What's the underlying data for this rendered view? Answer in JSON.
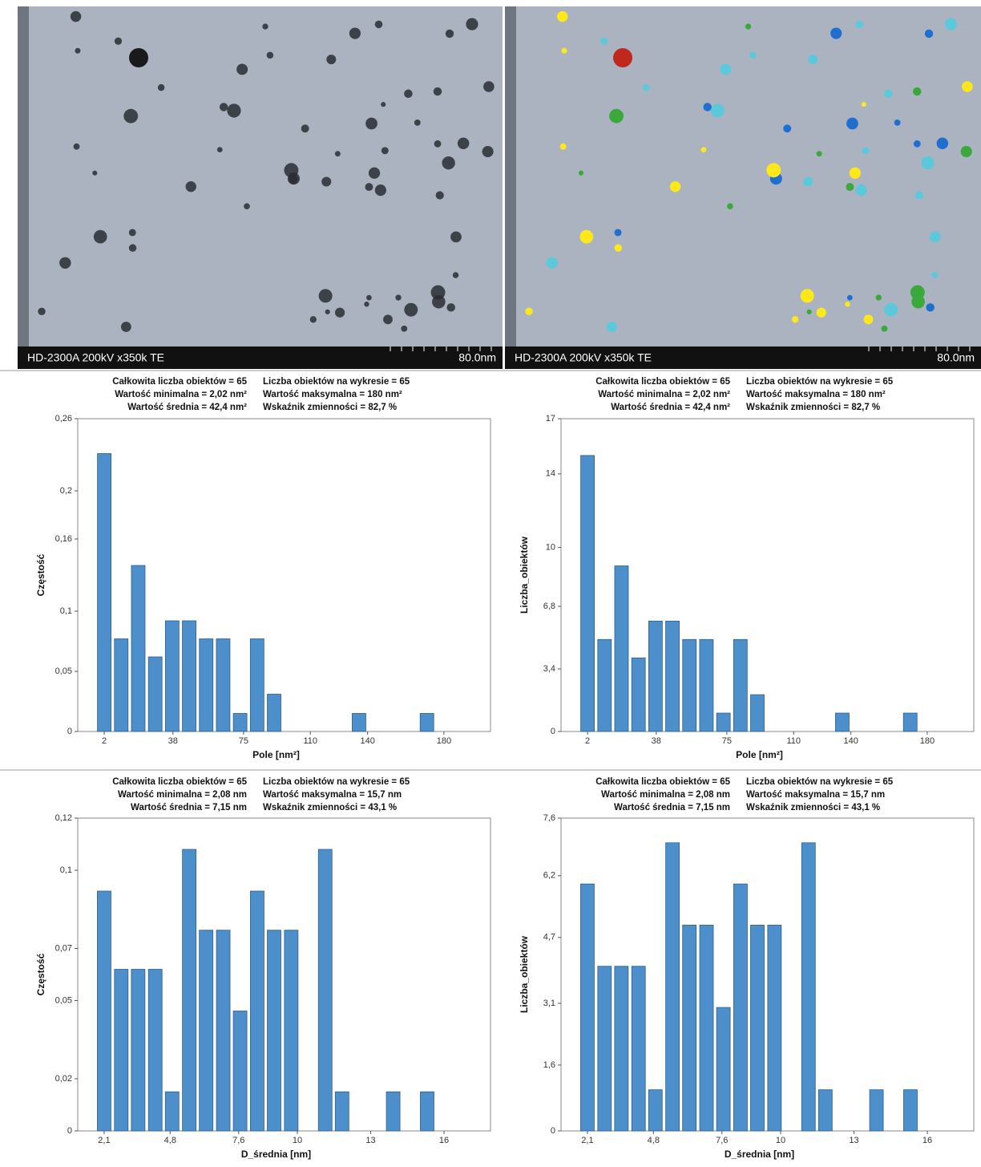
{
  "images": [
    {
      "caption": "HD-2300A  200kV  x350k  TE",
      "scale": "80.0nm"
    },
    {
      "caption": "HD-2300A  200kV  x350k  TE",
      "scale": "80.0nm"
    }
  ],
  "chart_data": [
    {
      "type": "bar",
      "color": "#4d8fcb",
      "stats": [
        "Całkowita liczba obiektów = 65",
        "Liczba obiektów na wykresie = 65",
        "Wartość minimalna = 2,02 nm²",
        "Wartość maksymalna = 180 nm²",
        "Wartość średnia = 42,4 nm²",
        "Wskaźnik zmienności = 82,7 %"
      ],
      "x_label": "Pole [nm²]",
      "y_label": "Częstość",
      "x": [
        2,
        10.9,
        19.8,
        28.7,
        37.6,
        46.5,
        55.4,
        64.3,
        73.2,
        82.1,
        91,
        99.9,
        108.8,
        117.7,
        126.6,
        135.5,
        144.4,
        153.3,
        162.2,
        171.1
      ],
      "values": [
        0.231,
        0.077,
        0.138,
        0.062,
        0.092,
        0.092,
        0.077,
        0.077,
        0.015,
        0.077,
        0.031,
        0,
        0,
        0,
        0,
        0.015,
        0,
        0,
        0,
        0.015
      ],
      "xlim": [
        -11.9,
        204.4
      ],
      "xticks": [
        2,
        38,
        75,
        110,
        140,
        180
      ],
      "ylim": [
        0,
        0.26
      ],
      "yticks": [
        0,
        {
          "value": 0.05,
          "label": "0,05"
        },
        {
          "value": 0.1,
          "label": "0,1"
        },
        {
          "value": 0.16,
          "label": "0,16"
        },
        {
          "value": 0.2,
          "label": "0,2"
        },
        {
          "value": 0.26,
          "label": "0,26"
        }
      ]
    },
    {
      "type": "bar",
      "color": "#4d8fcb",
      "stats": [
        "Całkowita liczba obiektów = 65",
        "Liczba obiektów na wykresie = 65",
        "Wartość minimalna = 2,02 nm²",
        "Wartość maksymalna = 180 nm²",
        "Wartość średnia = 42,4 nm²",
        "Wskaźnik zmienności = 82,7 %"
      ],
      "x_label": "Pole [nm²]",
      "y_label": "Liczba_obiektów",
      "x": [
        2,
        10.9,
        19.8,
        28.7,
        37.6,
        46.5,
        55.4,
        64.3,
        73.2,
        82.1,
        91,
        99.9,
        108.8,
        117.7,
        126.6,
        135.5,
        144.4,
        153.3,
        162.2,
        171.1
      ],
      "values": [
        15,
        5,
        9,
        4,
        6,
        6,
        5,
        5,
        1,
        5,
        2,
        0,
        0,
        0,
        0,
        1,
        0,
        0,
        0,
        1
      ],
      "xlim": [
        -11.9,
        204.4
      ],
      "xticks": [
        2,
        38,
        75,
        110,
        140,
        180
      ],
      "ylim": [
        0,
        17
      ],
      "yticks": [
        0,
        {
          "value": 3.4,
          "label": "3,4"
        },
        {
          "value": 6.8,
          "label": "6,8"
        },
        10,
        14,
        17
      ]
    },
    {
      "type": "bar",
      "color": "#4d8fcb",
      "stats": [
        "Całkowita liczba obiektów = 65",
        "Liczba obiektów na wykresie = 65",
        "Wartość minimalna = 2,08 nm",
        "Wartość maksymalna = 15,7 nm",
        "Wartość średnia = 7,15 nm",
        "Wskaźnik zmienności = 43,1 %"
      ],
      "x_label": "D_średnia [nm]",
      "y_label": "Częstość",
      "x": [
        2.1,
        2.8,
        3.49,
        4.19,
        4.88,
        5.58,
        6.27,
        6.97,
        7.66,
        8.36,
        9.05,
        9.75,
        10.44,
        11.14,
        11.83,
        12.53,
        13.22,
        13.92,
        14.61,
        15.31
      ],
      "values": [
        0.092,
        0.062,
        0.062,
        0.062,
        0.015,
        0.108,
        0.077,
        0.077,
        0.046,
        0.092,
        0.077,
        0.077,
        0,
        0.108,
        0.015,
        0,
        0,
        0.015,
        0,
        0.015
      ],
      "xlim": [
        1.02,
        17.9
      ],
      "xticks": [
        {
          "value": 2.1,
          "label": "2,1"
        },
        {
          "value": 4.8,
          "label": "4,8"
        },
        {
          "value": 7.6,
          "label": "7,6"
        },
        10,
        13,
        16
      ],
      "ylim": [
        0,
        0.12
      ],
      "yticks": [
        0,
        {
          "value": 0.02,
          "label": "0,02"
        },
        {
          "value": 0.05,
          "label": "0,05"
        },
        {
          "value": 0.07,
          "label": "0,07"
        },
        {
          "value": 0.1,
          "label": "0,1"
        },
        {
          "value": 0.12,
          "label": "0,12"
        }
      ]
    },
    {
      "type": "bar",
      "color": "#4d8fcb",
      "stats": [
        "Całkowita liczba obiektów = 65",
        "Liczba obiektów na wykresie = 65",
        "Wartość minimalna = 2,08 nm",
        "Wartość maksymalna = 15,7 nm",
        "Wartość średnia = 7,15 nm",
        "Wskaźnik zmienności = 43,1 %"
      ],
      "x_label": "D_średnia [nm]",
      "y_label": "Liczba_obiektów",
      "x": [
        2.1,
        2.8,
        3.49,
        4.19,
        4.88,
        5.58,
        6.27,
        6.97,
        7.66,
        8.36,
        9.05,
        9.75,
        10.44,
        11.14,
        11.83,
        12.53,
        13.22,
        13.92,
        14.61,
        15.31
      ],
      "values": [
        6,
        4,
        4,
        4,
        1,
        7,
        5,
        5,
        3,
        6,
        5,
        5,
        0,
        7,
        1,
        0,
        0,
        1,
        0,
        1
      ],
      "xlim": [
        1.02,
        17.9
      ],
      "xticks": [
        {
          "value": 2.1,
          "label": "2,1"
        },
        {
          "value": 4.8,
          "label": "4,8"
        },
        {
          "value": 7.6,
          "label": "7,6"
        },
        10,
        13,
        16
      ],
      "ylim": [
        0,
        7.6
      ],
      "yticks": [
        0,
        {
          "value": 1.6,
          "label": "1,6"
        },
        {
          "value": 3.1,
          "label": "3,1"
        },
        {
          "value": 4.7,
          "label": "4,7"
        },
        {
          "value": 6.2,
          "label": "6,2"
        },
        {
          "value": 7.6,
          "label": "7,6"
        }
      ]
    }
  ]
}
